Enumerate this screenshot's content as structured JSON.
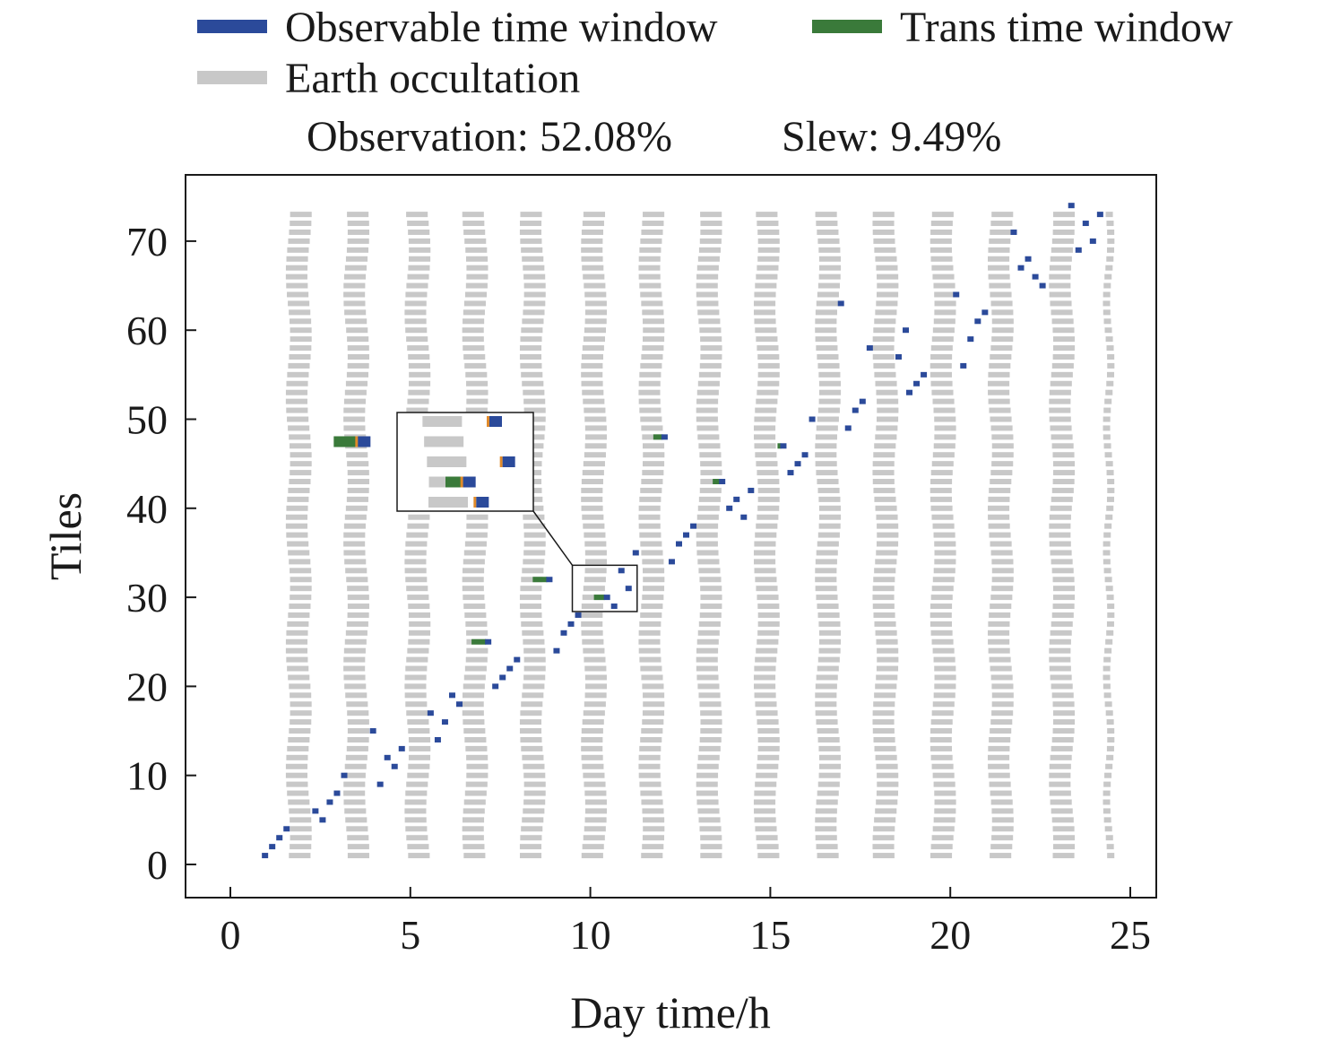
{
  "legend": {
    "observable": "Observable time window",
    "trans": "Trans time window",
    "earth": "Earth occultation"
  },
  "stats": {
    "observation": "Observation: 52.08%",
    "slew": "Slew: 9.49%"
  },
  "chart_data": {
    "type": "scatter",
    "xlabel": "Day time/h",
    "ylabel": "Tiles",
    "xlim": [
      0,
      25
    ],
    "ylim": [
      0,
      74
    ],
    "xticks": [
      0,
      5,
      10,
      15,
      20,
      25
    ],
    "yticks": [
      0,
      10,
      20,
      30,
      40,
      50,
      60,
      70
    ],
    "colors": {
      "observable": "#2b4a9a",
      "trans": "#3a7a3a",
      "earth": "#c8c8c8",
      "accent": "#e08a2a"
    },
    "earth_occultation": {
      "tiles": [
        1,
        73
      ],
      "bands": [
        {
          "start": 1.6,
          "end": 2.2
        },
        {
          "start": 3.2,
          "end": 3.8
        },
        {
          "start": 4.9,
          "end": 5.5
        },
        {
          "start": 6.5,
          "end": 7.1
        },
        {
          "start": 8.1,
          "end": 8.7
        },
        {
          "start": 9.8,
          "end": 10.4
        },
        {
          "start": 11.4,
          "end": 12.0
        },
        {
          "start": 13.0,
          "end": 13.6
        },
        {
          "start": 14.6,
          "end": 15.2
        },
        {
          "start": 16.3,
          "end": 16.9
        },
        {
          "start": 17.9,
          "end": 18.5
        },
        {
          "start": 19.5,
          "end": 20.1
        },
        {
          "start": 21.1,
          "end": 21.7
        },
        {
          "start": 22.8,
          "end": 23.4
        },
        {
          "start": 24.3,
          "end": 24.5
        }
      ]
    },
    "observations": [
      {
        "tile": 1,
        "t": 0.95
      },
      {
        "tile": 2,
        "t": 1.15
      },
      {
        "tile": 3,
        "t": 1.35
      },
      {
        "tile": 4,
        "t": 1.55
      },
      {
        "tile": 5,
        "t": 2.55
      },
      {
        "tile": 6,
        "t": 2.35
      },
      {
        "tile": 7,
        "t": 2.75
      },
      {
        "tile": 8,
        "t": 2.95
      },
      {
        "tile": 9,
        "t": 4.15
      },
      {
        "tile": 10,
        "t": 3.15
      },
      {
        "tile": 11,
        "t": 4.55
      },
      {
        "tile": 12,
        "t": 4.35
      },
      {
        "tile": 13,
        "t": 4.75
      },
      {
        "tile": 14,
        "t": 5.75
      },
      {
        "tile": 15,
        "t": 3.95
      },
      {
        "tile": 16,
        "t": 5.95
      },
      {
        "tile": 17,
        "t": 5.55
      },
      {
        "tile": 18,
        "t": 6.35
      },
      {
        "tile": 19,
        "t": 6.15
      },
      {
        "tile": 20,
        "t": 7.35
      },
      {
        "tile": 21,
        "t": 7.55
      },
      {
        "tile": 22,
        "t": 7.75
      },
      {
        "tile": 23,
        "t": 7.95
      },
      {
        "tile": 24,
        "t": 9.05
      },
      {
        "tile": 25,
        "t": 7.15,
        "trans": 6.7
      },
      {
        "tile": 26,
        "t": 9.25
      },
      {
        "tile": 27,
        "t": 9.45
      },
      {
        "tile": 28,
        "t": 9.65
      },
      {
        "tile": 29,
        "t": 10.65
      },
      {
        "tile": 30,
        "t": 10.45,
        "trans": 10.1
      },
      {
        "tile": 31,
        "t": 11.05
      },
      {
        "tile": 32,
        "t": 8.85,
        "trans": 8.4
      },
      {
        "tile": 33,
        "t": 10.85
      },
      {
        "tile": 34,
        "t": 12.25
      },
      {
        "tile": 35,
        "t": 11.25
      },
      {
        "tile": 36,
        "t": 12.45
      },
      {
        "tile": 37,
        "t": 12.65
      },
      {
        "tile": 38,
        "t": 12.85
      },
      {
        "tile": 39,
        "t": 14.25
      },
      {
        "tile": 40,
        "t": 13.85
      },
      {
        "tile": 41,
        "t": 14.05
      },
      {
        "tile": 43,
        "t": 13.65,
        "trans": 13.4
      },
      {
        "tile": 42,
        "t": 14.45
      },
      {
        "tile": 44,
        "t": 15.55
      },
      {
        "tile": 45,
        "t": 15.75
      },
      {
        "tile": 46,
        "t": 15.95
      },
      {
        "tile": 47,
        "t": 15.35,
        "trans": 15.2
      },
      {
        "tile": 48,
        "t": 12.05,
        "trans": 11.75
      },
      {
        "tile": 49,
        "t": 17.15
      },
      {
        "tile": 50,
        "t": 16.15
      },
      {
        "tile": 51,
        "t": 17.35
      },
      {
        "tile": 52,
        "t": 17.55
      },
      {
        "tile": 53,
        "t": 18.85
      },
      {
        "tile": 54,
        "t": 19.05
      },
      {
        "tile": 55,
        "t": 19.25
      },
      {
        "tile": 56,
        "t": 20.35
      },
      {
        "tile": 57,
        "t": 18.55
      },
      {
        "tile": 58,
        "t": 17.75
      },
      {
        "tile": 59,
        "t": 20.55
      },
      {
        "tile": 60,
        "t": 18.75
      },
      {
        "tile": 61,
        "t": 20.75
      },
      {
        "tile": 62,
        "t": 20.95
      },
      {
        "tile": 63,
        "t": 16.95
      },
      {
        "tile": 64,
        "t": 20.15
      },
      {
        "tile": 65,
        "t": 22.55
      },
      {
        "tile": 66,
        "t": 22.35
      },
      {
        "tile": 67,
        "t": 21.95
      },
      {
        "tile": 68,
        "t": 22.15
      },
      {
        "tile": 69,
        "t": 23.55
      },
      {
        "tile": 70,
        "t": 23.95
      },
      {
        "tile": 71,
        "t": 21.75
      },
      {
        "tile": 72,
        "t": 23.75
      },
      {
        "tile": 73,
        "t": 24.15
      },
      {
        "tile": 74,
        "t": 23.35
      }
    ],
    "inset": {
      "tiles": [
        29,
        33
      ],
      "xlim": [
        9.5,
        11.3
      ]
    },
    "legend_position": "top"
  }
}
